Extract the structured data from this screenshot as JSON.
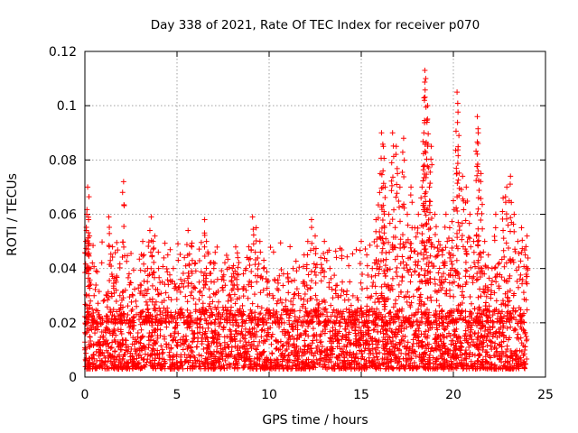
{
  "chart_data": {
    "type": "scatter",
    "title": "Day 338 of 2021, Rate Of TEC Index for receiver p070",
    "xlabel": "GPS time / hours",
    "ylabel": "ROTI / TECUs",
    "xlim": [
      0,
      25
    ],
    "ylim": [
      0,
      0.12
    ],
    "xticks": [
      0,
      5,
      10,
      15,
      20,
      25
    ],
    "xtick_labels": [
      "0",
      "5",
      "10",
      "15",
      "20",
      "25"
    ],
    "yticks": [
      0,
      0.02,
      0.04,
      0.06,
      0.08,
      0.1,
      0.12
    ],
    "ytick_labels": [
      "0",
      "0.02",
      "0.04",
      "0.06",
      "0.08",
      "0.1",
      "0.12"
    ],
    "grid": true,
    "marker": "plus",
    "color": "#ff0000",
    "series": [
      {
        "x": [
          0.05,
          0.1,
          0.15,
          0.2,
          0.25,
          0.3,
          0.1,
          0.2,
          0.15,
          0.25,
          0.3,
          0.4,
          0.5,
          0.6,
          0.8,
          1.0,
          1.2,
          1.3,
          1.5,
          1.7,
          1.9,
          2.1,
          2.2,
          2.4,
          2.6,
          2.8,
          3.0,
          3.2,
          3.4,
          3.6,
          3.7,
          3.8,
          4.0,
          4.2,
          4.5,
          4.8,
          5.0,
          5.2,
          5.4,
          5.6,
          5.8,
          6.0,
          6.2,
          6.5,
          6.6,
          6.8,
          7.0,
          7.2,
          7.5,
          7.8,
          8.0,
          8.3,
          8.6,
          8.9,
          9.1,
          9.3,
          9.5,
          9.7,
          9.9,
          10.2,
          10.5,
          10.8,
          11.0,
          11.3,
          11.6,
          11.9,
          12.1,
          12.3,
          12.5,
          12.8,
          13.0,
          13.3,
          13.6,
          13.9,
          14.2,
          14.5,
          14.8,
          15.0,
          15.3,
          15.6,
          15.8,
          16.0,
          16.1,
          16.2,
          16.3,
          16.5,
          16.7,
          16.9,
          17.1,
          17.3,
          17.5,
          17.7,
          17.9,
          18.1,
          18.3,
          18.4,
          18.45,
          18.5,
          18.6,
          18.7,
          18.8,
          19.0,
          19.2,
          19.4,
          19.6,
          19.8,
          20.0,
          20.2,
          20.3,
          20.5,
          20.7,
          20.9,
          21.1,
          21.3,
          21.35,
          21.5,
          21.7,
          21.9,
          22.1,
          22.3,
          22.5,
          22.7,
          22.9,
          23.1,
          23.3,
          23.5,
          23.7,
          23.9,
          24.0
        ],
        "y": [
          0.05,
          0.06,
          0.07,
          0.058,
          0.052,
          0.04,
          0.03,
          0.045,
          0.02,
          0.035,
          0.028,
          0.025,
          0.03,
          0.018,
          0.022,
          0.028,
          0.03,
          0.059,
          0.048,
          0.035,
          0.03,
          0.072,
          0.032,
          0.038,
          0.03,
          0.026,
          0.034,
          0.045,
          0.04,
          0.059,
          0.05,
          0.052,
          0.04,
          0.035,
          0.045,
          0.04,
          0.032,
          0.036,
          0.044,
          0.054,
          0.048,
          0.042,
          0.035,
          0.058,
          0.05,
          0.042,
          0.04,
          0.036,
          0.032,
          0.03,
          0.04,
          0.044,
          0.038,
          0.048,
          0.059,
          0.055,
          0.05,
          0.04,
          0.035,
          0.03,
          0.032,
          0.025,
          0.038,
          0.04,
          0.03,
          0.045,
          0.05,
          0.058,
          0.052,
          0.044,
          0.05,
          0.04,
          0.032,
          0.03,
          0.025,
          0.024,
          0.025,
          0.05,
          0.045,
          0.04,
          0.058,
          0.068,
          0.09,
          0.085,
          0.07,
          0.06,
          0.09,
          0.085,
          0.07,
          0.088,
          0.06,
          0.07,
          0.055,
          0.06,
          0.07,
          0.09,
          0.113,
          0.11,
          0.1,
          0.07,
          0.085,
          0.06,
          0.05,
          0.045,
          0.06,
          0.055,
          0.065,
          0.105,
          0.089,
          0.074,
          0.07,
          0.06,
          0.05,
          0.096,
          0.09,
          0.075,
          0.05,
          0.045,
          0.04,
          0.06,
          0.042,
          0.066,
          0.07,
          0.074,
          0.06,
          0.05,
          0.055,
          0.045,
          0.052
        ]
      }
    ],
    "baseline_band": {
      "x_range": [
        0,
        24
      ],
      "y_range": [
        0.003,
        0.025
      ],
      "note_dense_floor": true
    }
  }
}
